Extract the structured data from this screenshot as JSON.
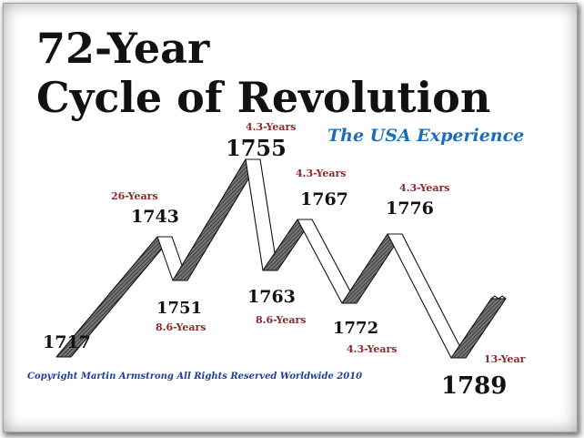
{
  "title_line1": "72-Year",
  "title_line2": "Cycle of Revolution",
  "subtitle": "The USA Experience",
  "copyright": "Copyright Martin Armstrong All Rights Reserved Worldwide 2010",
  "colors": {
    "title": "#111111",
    "subtitle": "#1a6fb8",
    "duration": "#8b2a2a",
    "copyright": "#1d3f9e",
    "ribbon_dark": "#555555",
    "ribbon_light": "#ffffff"
  },
  "years": {
    "y1717": "1717",
    "y1743": "1743",
    "y1751": "1751",
    "y1755": "1755",
    "y1763": "1763",
    "y1767": "1767",
    "y1772": "1772",
    "y1776": "1776",
    "y1789": "1789"
  },
  "durations": {
    "d_1717_1743": "26-Years",
    "d_1743_1751": "8.6-Years",
    "d_1751_1755": "4.3-Years",
    "d_1755_1763": "8.6-Years",
    "d_1763_1767": "4.3-Years",
    "d_1767_1772": "4.3-Years",
    "d_1772_1776": "4.3-Years",
    "d_1776_1789": "13-Year"
  }
}
